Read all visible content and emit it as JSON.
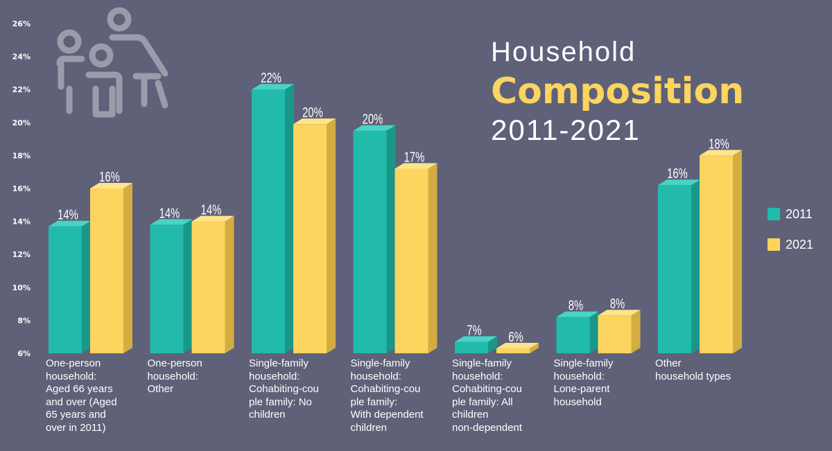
{
  "title": {
    "line1": "Household",
    "line2": "Composition",
    "line3": "2011-2021"
  },
  "colors": {
    "background": "#5e6178",
    "series_2011": "#22bbab",
    "series_2021": "#fcd45e"
  },
  "legend": [
    {
      "label": "2011",
      "color": "#22bbab"
    },
    {
      "label": "2021",
      "color": "#fcd45e"
    }
  ],
  "icon": "family-people-icon",
  "chart_data": {
    "type": "bar",
    "title": "Household Composition 2011-2021",
    "xlabel": "",
    "ylabel": "",
    "ylim": [
      6,
      26
    ],
    "yticks": [
      "6%",
      "8%",
      "10%",
      "12%",
      "14%",
      "16%",
      "18%",
      "20%",
      "22%",
      "24%",
      "26%"
    ],
    "categories": [
      "One-person household: Aged 66 years and over (Aged 65 years and over in 2011)",
      "One-person household: Other",
      "Single-family household: Cohabiting-couple family: No children",
      "Single-family household: Cohabiting-couple family: With dependent children",
      "Single-family household: Cohabiting-couple family: All children non-dependent",
      "Single-family household: Lone-parent household",
      "Other household types"
    ],
    "category_label_lines": [
      [
        "One-person",
        "household:",
        "Aged 66 years",
        "and over (Aged",
        "65 years and",
        "over in 2011)"
      ],
      [
        "One-person",
        "household:",
        "Other"
      ],
      [
        "Single-family",
        "household:",
        "Cohabiting-cou",
        "ple family: No",
        "children"
      ],
      [
        "Single-family",
        "household:",
        "Cohabiting-cou",
        "ple family:",
        "With dependent",
        "children"
      ],
      [
        "Single-family",
        "household:",
        "Cohabiting-cou",
        "ple family: All",
        "children",
        "non-dependent"
      ],
      [
        "Single-family",
        "household:",
        "Lone-parent",
        "household"
      ],
      [
        "Other",
        "household types"
      ]
    ],
    "series": [
      {
        "name": "2011",
        "values": [
          13.7,
          13.8,
          22.0,
          19.5,
          6.7,
          8.2,
          16.2
        ],
        "labels": [
          "14%",
          "14%",
          "22%",
          "20%",
          "7%",
          "8%",
          "16%"
        ]
      },
      {
        "name": "2021",
        "values": [
          16.0,
          14.0,
          19.9,
          17.2,
          6.3,
          8.3,
          18.0
        ],
        "labels": [
          "16%",
          "14%",
          "20%",
          "17%",
          "6%",
          "8%",
          "18%"
        ]
      }
    ],
    "legend_position": "right",
    "grid": false
  }
}
